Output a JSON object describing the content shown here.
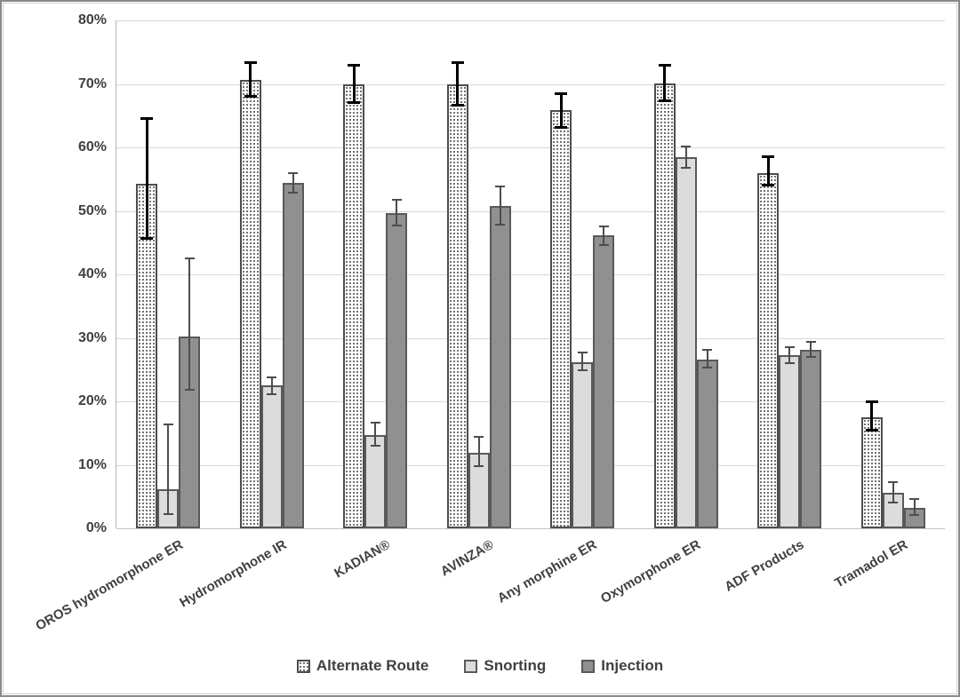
{
  "chart_data": {
    "type": "bar",
    "title": "",
    "xlabel": "",
    "ylabel": "",
    "ylim": [
      0,
      80
    ],
    "ytick_step": 10,
    "ytick_labels": [
      "0%",
      "10%",
      "20%",
      "30%",
      "40%",
      "50%",
      "60%",
      "70%",
      "80%"
    ],
    "grid": true,
    "legend_position": "bottom",
    "categories": [
      "OROS hydromorphone ER",
      "Hydromorphone IR",
      "KADIAN®",
      "AVINZA®",
      "Any morphine ER",
      "Oxymorphone ER",
      "ADF Products",
      "Tramadol ER"
    ],
    "series": [
      {
        "name": "Alternate Route",
        "style_key": "dotted-pattern",
        "values": [
          54.3,
          70.6,
          69.9,
          69.9,
          65.9,
          70.1,
          56.0,
          17.5
        ],
        "error_low": [
          45.7,
          68.0,
          67.1,
          66.6,
          63.2,
          67.4,
          54.0,
          15.5
        ],
        "error_high": [
          64.6,
          73.4,
          73.0,
          73.3,
          68.5,
          73.0,
          58.5,
          19.9
        ]
      },
      {
        "name": "Snorting",
        "style_key": "light-gray",
        "values": [
          6.1,
          22.5,
          14.7,
          11.9,
          26.2,
          58.4,
          27.3,
          5.6
        ],
        "error_low": [
          2.3,
          21.1,
          13.0,
          9.8,
          24.9,
          56.8,
          26.0,
          4.1
        ],
        "error_high": [
          16.3,
          23.8,
          16.6,
          14.4,
          27.7,
          60.2,
          28.5,
          7.3
        ]
      },
      {
        "name": "Injection",
        "style_key": "dark-gray",
        "values": [
          30.2,
          54.4,
          49.7,
          50.8,
          46.2,
          26.6,
          28.1,
          3.2
        ],
        "error_low": [
          21.8,
          52.9,
          47.7,
          47.8,
          44.6,
          25.3,
          27.0,
          2.1
        ],
        "error_high": [
          42.5,
          55.9,
          51.8,
          53.8,
          47.6,
          28.1,
          29.4,
          4.6
        ]
      }
    ],
    "colors": {
      "pattern_dot": "#6e6e6e",
      "snorting_fill": "#dcdcdc",
      "injection_fill": "#909090",
      "bar_border": "#595959",
      "gridline": "#d9d9d9",
      "axis_line": "#b3b3b3",
      "text": "#404040",
      "error_bar_primary": "#000000",
      "error_bar_secondary": "#4d4d4d",
      "figure_border": "#8a8a8a"
    }
  }
}
